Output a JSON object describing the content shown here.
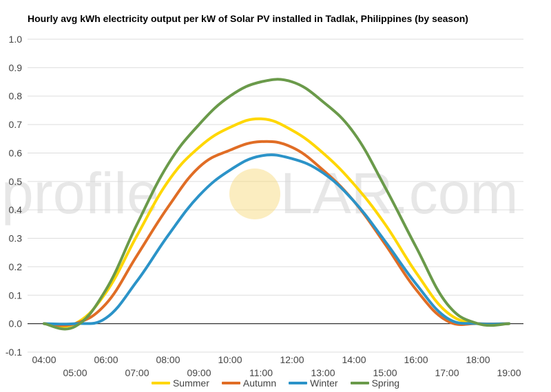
{
  "chart_data": {
    "type": "line",
    "title": "Hourly avg kWh electricity output per kW of Solar PV installed in Tadlak, Philippines (by season)",
    "watermark": {
      "left": "profile",
      "right": "LAR.com",
      "sun_color": "#f7d774"
    },
    "x": [
      "04:00",
      "05:00",
      "06:00",
      "07:00",
      "08:00",
      "09:00",
      "10:00",
      "11:00",
      "12:00",
      "13:00",
      "14:00",
      "15:00",
      "16:00",
      "17:00",
      "18:00",
      "19:00"
    ],
    "ylim": [
      -0.1,
      1.0
    ],
    "yticks": [
      "1.0",
      "0.9",
      "0.8",
      "0.7",
      "0.6",
      "0.5",
      "0.4",
      "0.3",
      "0.2",
      "0.1",
      "0.0",
      "-0.1"
    ],
    "grid": true,
    "legend_position": "bottom",
    "series": [
      {
        "name": "Summer",
        "color": "#ffd700",
        "values": [
          0.0,
          0.0,
          0.11,
          0.31,
          0.5,
          0.62,
          0.69,
          0.72,
          0.68,
          0.6,
          0.49,
          0.35,
          0.18,
          0.04,
          0.0,
          0.0
        ]
      },
      {
        "name": "Autumn",
        "color": "#e06d25",
        "values": [
          0.0,
          0.0,
          0.07,
          0.24,
          0.41,
          0.55,
          0.61,
          0.64,
          0.62,
          0.54,
          0.43,
          0.28,
          0.12,
          0.01,
          0.0,
          0.0
        ]
      },
      {
        "name": "Winter",
        "color": "#2b93c8",
        "values": [
          0.0,
          0.0,
          0.02,
          0.15,
          0.31,
          0.45,
          0.54,
          0.59,
          0.58,
          0.53,
          0.43,
          0.29,
          0.14,
          0.02,
          0.0,
          0.0
        ]
      },
      {
        "name": "Spring",
        "color": "#6a9a4a",
        "values": [
          0.0,
          -0.01,
          0.12,
          0.35,
          0.56,
          0.7,
          0.8,
          0.85,
          0.85,
          0.78,
          0.67,
          0.48,
          0.27,
          0.07,
          0.0,
          0.0
        ]
      }
    ]
  }
}
